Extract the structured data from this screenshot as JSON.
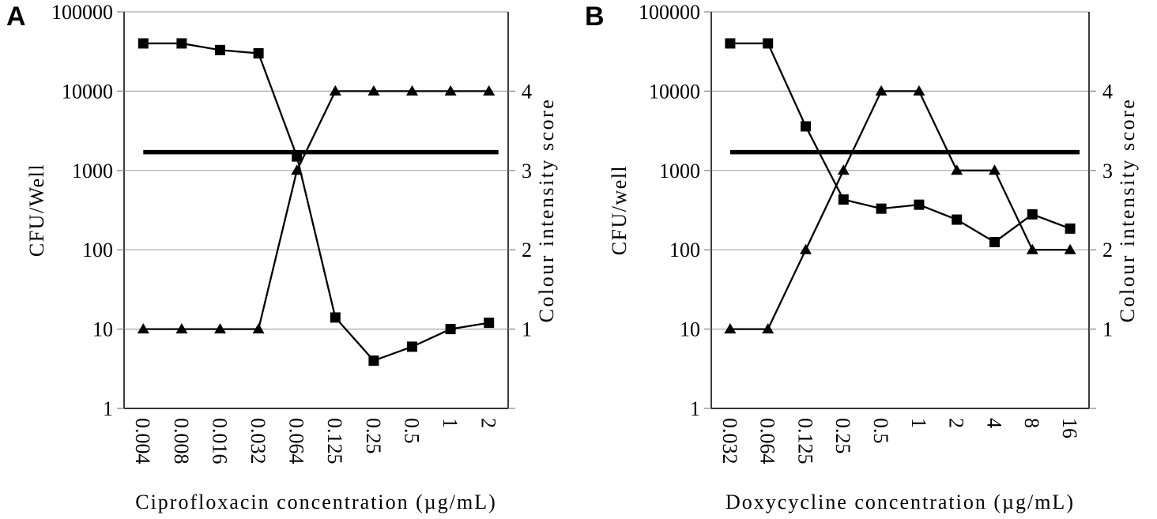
{
  "panels": [
    {
      "panel_label": "A"
    },
    {
      "panel_label": "B"
    }
  ],
  "colors": {
    "series_line": "#000000",
    "marker": "#000000",
    "cutoff_line": "#000000",
    "grid": "#a6a6a6",
    "axis": "#1a1a1a",
    "tick": "#8a8a8a",
    "text": "#000000",
    "background": "#ffffff"
  },
  "chart_data": [
    {
      "type": "line",
      "title": "",
      "xlabel": "Ciprofloxacin concentration (µg/mL)",
      "ylabel_left": "CFU/Well",
      "ylabel_right": "Colour intensity score",
      "x_categories": [
        "0.004",
        "0.008",
        "0.016",
        "0.032",
        "0.064",
        "0.125",
        "0.25",
        "0.5",
        "1",
        "2"
      ],
      "y_left_scale": "log",
      "y_left_range": [
        1,
        100000
      ],
      "y_left_ticks": [
        "1",
        "10",
        "100",
        "1000",
        "10000",
        "100000"
      ],
      "y_right_range": [
        1,
        4
      ],
      "y_right_ticks": [
        "1",
        "2",
        "3",
        "4"
      ],
      "grid": true,
      "legend": "none",
      "series": [
        {
          "name": "CFU per well",
          "axis": "left",
          "marker": "square",
          "values": [
            40000,
            40000,
            33000,
            30000,
            1500,
            14,
            4,
            6,
            10,
            12
          ]
        },
        {
          "name": "Colour intensity score",
          "axis": "right",
          "marker": "triangle",
          "values": [
            1,
            1,
            1,
            1,
            3,
            4,
            4,
            4,
            4,
            4
          ]
        }
      ],
      "cutoff_line": {
        "axis": "left",
        "value": 1700
      }
    },
    {
      "type": "line",
      "title": "",
      "xlabel": "Doxycycline concentration (µg/mL)",
      "ylabel_left": "CFU/well",
      "ylabel_right": "Colour intensity score",
      "x_categories": [
        "0.032",
        "0.064",
        "0.125",
        "0.25",
        "0.5",
        "1",
        "2",
        "4",
        "8",
        "16"
      ],
      "y_left_scale": "log",
      "y_left_range": [
        1,
        100000
      ],
      "y_left_ticks": [
        "1",
        "10",
        "100",
        "1000",
        "10000",
        "100000"
      ],
      "y_right_range": [
        1,
        4
      ],
      "y_right_ticks": [
        "1",
        "2",
        "3",
        "4"
      ],
      "grid": true,
      "legend": "none",
      "series": [
        {
          "name": "CFU per well",
          "axis": "left",
          "marker": "square",
          "values": [
            40000,
            40000,
            3600,
            430,
            330,
            370,
            240,
            125,
            280,
            185
          ]
        },
        {
          "name": "Colour intensity score",
          "axis": "right",
          "marker": "triangle",
          "values": [
            1,
            1,
            2,
            3,
            4,
            4,
            3,
            3,
            2,
            2
          ]
        }
      ],
      "cutoff_line": {
        "axis": "left",
        "value": 1700
      }
    }
  ]
}
